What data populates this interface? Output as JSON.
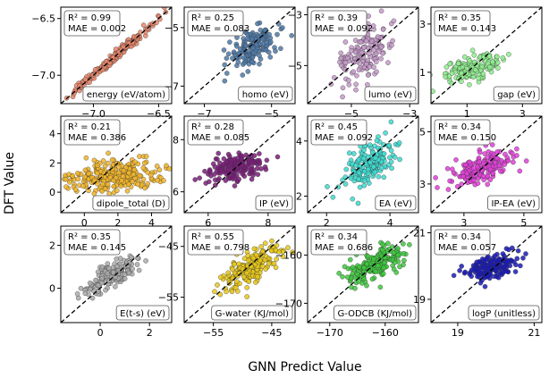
{
  "figure": {
    "xlabel": "GNN Predict Value",
    "ylabel": "DFT Value"
  },
  "chart_data": [
    {
      "type": "scatter",
      "property": "energy (eV/atom)",
      "r2": "R² = 0.99",
      "mae": "MAE = 0.002",
      "color": "#e8866b",
      "xlim": [
        -7.25,
        -6.4
      ],
      "ylim": [
        -7.25,
        -6.4
      ],
      "xticks": [
        {
          "v": -7.0,
          "label": "−7.0"
        },
        {
          "v": -6.5,
          "label": "−6.5"
        }
      ],
      "yticks": [
        {
          "v": -7.0,
          "label": "−7.0"
        },
        {
          "v": -6.5,
          "label": "−6.5"
        }
      ],
      "cloud": {
        "center": [
          -6.85,
          -6.85
        ],
        "major": 0.22,
        "minor": 0.015,
        "angle": 45,
        "n": 200
      }
    },
    {
      "type": "scatter",
      "property": "homo (eV)",
      "r2": "R² = 0.25",
      "mae": "MAE = 0.083",
      "color": "#4e79a7",
      "xlim": [
        -7.6,
        -4.3
      ],
      "ylim": [
        -7.6,
        -4.3
      ],
      "xticks": [
        {
          "v": -7,
          "label": "−7"
        },
        {
          "v": -5,
          "label": "−5"
        }
      ],
      "yticks": [
        {
          "v": -7,
          "label": "−7"
        },
        {
          "v": -5,
          "label": "−5"
        }
      ],
      "cloud": {
        "center": [
          -5.55,
          -5.65
        ],
        "major": 0.45,
        "minor": 0.25,
        "angle": 40,
        "n": 160
      }
    },
    {
      "type": "scatter",
      "property": "lumo (eV)",
      "r2": "R² = 0.39",
      "mae": "MAE = 0.092",
      "color": "#c49ac9",
      "xlim": [
        -6.5,
        -2.7
      ],
      "ylim": [
        -6.5,
        -2.7
      ],
      "xticks": [
        {
          "v": -5,
          "label": "−5"
        },
        {
          "v": -3,
          "label": "−3"
        }
      ],
      "yticks": [
        {
          "v": -5,
          "label": "−5"
        },
        {
          "v": -3,
          "label": "−3"
        }
      ],
      "cloud": {
        "center": [
          -4.6,
          -4.5
        ],
        "major": 0.65,
        "minor": 0.35,
        "angle": 60,
        "n": 160
      }
    },
    {
      "type": "scatter",
      "property": "gap (eV)",
      "r2": "R² = 0.35",
      "mae": "MAE = 0.143",
      "color": "#90ee90",
      "xlim": [
        -0.3,
        3.7
      ],
      "ylim": [
        -0.3,
        3.7
      ],
      "xticks": [
        {
          "v": 1,
          "label": "1"
        },
        {
          "v": 3,
          "label": "3"
        }
      ],
      "yticks": [
        {
          "v": 1,
          "label": "1"
        },
        {
          "v": 3,
          "label": "3"
        }
      ],
      "cloud": {
        "center": [
          1.25,
          1.25
        ],
        "major": 0.55,
        "minor": 0.25,
        "angle": 20,
        "n": 160
      }
    },
    {
      "type": "scatter",
      "property": "dipole_total (D)",
      "r2": "R² = 0.21",
      "mae": "MAE = 0.386",
      "color": "#f0b429",
      "xlim": [
        -1.4,
        5.2
      ],
      "ylim": [
        -1.4,
        5.2
      ],
      "xticks": [
        {
          "v": 0,
          "label": "0"
        },
        {
          "v": 2,
          "label": "2"
        },
        {
          "v": 4,
          "label": "4"
        }
      ],
      "yticks": [
        {
          "v": 0,
          "label": "0"
        },
        {
          "v": 2,
          "label": "2"
        },
        {
          "v": 4,
          "label": "4"
        }
      ],
      "cloud": {
        "center": [
          1.7,
          1.1
        ],
        "major": 1.5,
        "minor": 0.55,
        "angle": 5,
        "n": 260
      }
    },
    {
      "type": "scatter",
      "property": "IP (eV)",
      "r2": "R² = 0.28",
      "mae": "MAE = 0.085",
      "color": "#7a1d7a",
      "xlim": [
        5.2,
        8.9
      ],
      "ylim": [
        5.2,
        8.9
      ],
      "xticks": [
        {
          "v": 6,
          "label": "6"
        },
        {
          "v": 8,
          "label": "8"
        }
      ],
      "yticks": [
        {
          "v": 6,
          "label": "6"
        },
        {
          "v": 8,
          "label": "8"
        }
      ],
      "cloud": {
        "center": [
          6.95,
          6.95
        ],
        "major": 0.5,
        "minor": 0.25,
        "angle": 15,
        "n": 160
      }
    },
    {
      "type": "scatter",
      "property": "EA (eV)",
      "r2": "R² = 0.45",
      "mae": "MAE = 0.092",
      "color": "#3ddad0",
      "xlim": [
        1.4,
        4.9
      ],
      "ylim": [
        1.4,
        4.9
      ],
      "xticks": [
        {
          "v": 2,
          "label": "2"
        },
        {
          "v": 4,
          "label": "4"
        }
      ],
      "yticks": [
        {
          "v": 2,
          "label": "2"
        },
        {
          "v": 4,
          "label": "4"
        }
      ],
      "cloud": {
        "center": [
          3.4,
          3.2
        ],
        "major": 0.55,
        "minor": 0.28,
        "angle": 45,
        "n": 160
      }
    },
    {
      "type": "scatter",
      "property": "IP-EA (eV)",
      "r2": "R² = 0.34",
      "mae": "MAE = 0.150",
      "color": "#e040d8",
      "xlim": [
        1.9,
        5.6
      ],
      "ylim": [
        1.9,
        5.6
      ],
      "xticks": [
        {
          "v": 3,
          "label": "3"
        },
        {
          "v": 5,
          "label": "5"
        }
      ],
      "yticks": [
        {
          "v": 3,
          "label": "3"
        },
        {
          "v": 5,
          "label": "5"
        }
      ],
      "cloud": {
        "center": [
          3.6,
          3.6
        ],
        "major": 0.55,
        "minor": 0.25,
        "angle": 25,
        "n": 180
      }
    },
    {
      "type": "scatter",
      "property": "E(t-s) (eV)",
      "r2": "R² = 0.35",
      "mae": "MAE = 0.145",
      "color": "#aaaaaa",
      "xlim": [
        -1.6,
        2.9
      ],
      "ylim": [
        -1.6,
        2.9
      ],
      "xticks": [
        {
          "v": 0,
          "label": "0"
        },
        {
          "v": 2,
          "label": "2"
        }
      ],
      "yticks": [
        {
          "v": 0,
          "label": "0"
        },
        {
          "v": 2,
          "label": "2"
        }
      ],
      "cloud": {
        "center": [
          0.5,
          0.6
        ],
        "major": 0.6,
        "minor": 0.25,
        "angle": 35,
        "n": 160
      }
    },
    {
      "type": "scatter",
      "property": "G-water (KJ/mol)",
      "r2": "R² = 0.55",
      "mae": "MAE = 0.798",
      "color": "#e8c81a",
      "xlim": [
        -60,
        -41
      ],
      "ylim": [
        -60,
        -41
      ],
      "xticks": [
        {
          "v": -55,
          "label": "−55"
        },
        {
          "v": -45,
          "label": "−45"
        }
      ],
      "yticks": [
        {
          "v": -55,
          "label": "−55"
        },
        {
          "v": -45,
          "label": "−45"
        }
      ],
      "cloud": {
        "center": [
          -48.5,
          -49
        ],
        "major": 3.2,
        "minor": 1.2,
        "angle": 40,
        "n": 200
      }
    },
    {
      "type": "scatter",
      "property": "G-ODCB (KJ/mol)",
      "r2": "R² = 0.34",
      "mae": "MAE = 0.686",
      "color": "#3ec83e",
      "xlim": [
        -174,
        -154
      ],
      "ylim": [
        -174,
        -154
      ],
      "xticks": [
        {
          "v": -170,
          "label": "−170"
        },
        {
          "v": -160,
          "label": "−160"
        }
      ],
      "yticks": [
        {
          "v": -170,
          "label": "−170"
        },
        {
          "v": -160,
          "label": "−160"
        }
      ],
      "cloud": {
        "center": [
          -162,
          -162
        ],
        "major": 3,
        "minor": 1.2,
        "angle": 35,
        "n": 200
      }
    },
    {
      "type": "scatter",
      "property": "logP (unitless)",
      "r2": "R² = 0.34",
      "mae": "MAE = 0.057",
      "color": "#1a1ab8",
      "xlim": [
        18.3,
        21.2
      ],
      "ylim": [
        18.3,
        21.2
      ],
      "xticks": [
        {
          "v": 19,
          "label": "19"
        },
        {
          "v": 21,
          "label": "21"
        }
      ],
      "yticks": [
        {
          "v": 19,
          "label": "19"
        },
        {
          "v": 21,
          "label": "21"
        }
      ],
      "cloud": {
        "center": [
          19.85,
          19.95
        ],
        "major": 0.35,
        "minor": 0.18,
        "angle": 25,
        "n": 160
      }
    }
  ]
}
